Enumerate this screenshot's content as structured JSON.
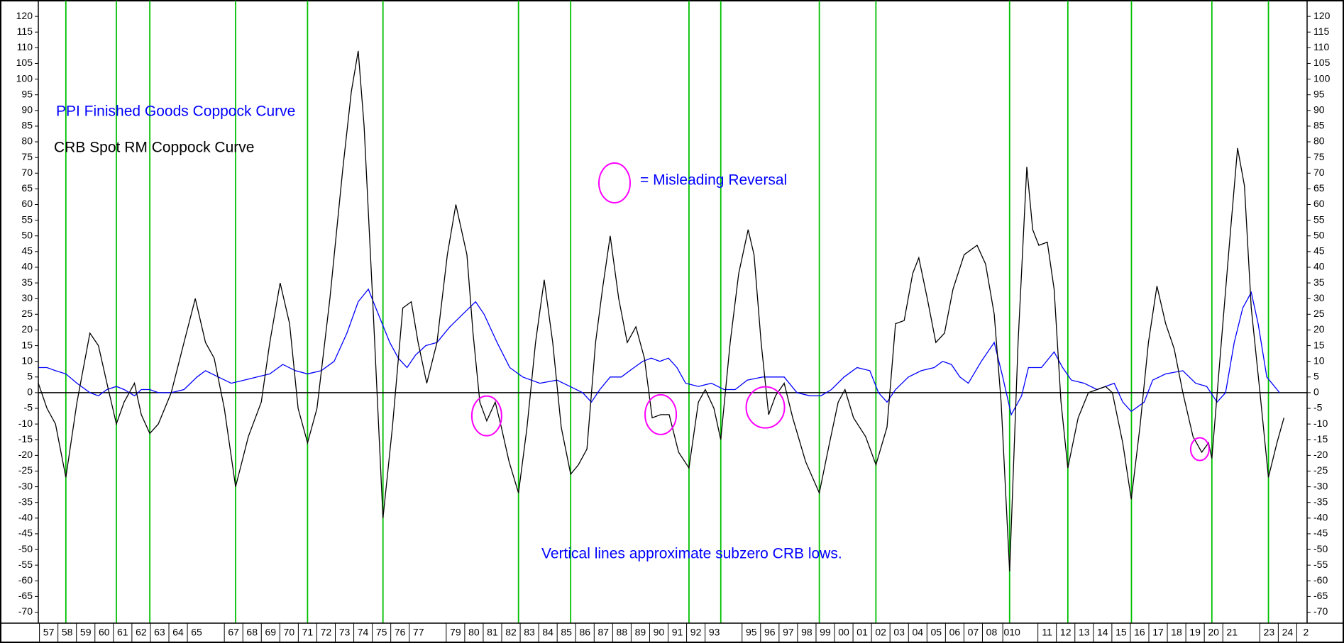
{
  "chart_data": {
    "type": "line",
    "annotations": [
      "PPI Finished Goods Coppock Curve",
      "CRB Spot RM Coppock Curve",
      "= Misleading Reversal",
      "Vertical lines approximate subzero CRB lows."
    ],
    "series": [
      {
        "name": "PPI Finished Goods Coppock Curve",
        "color": "#0000ff",
        "x": [
          1956.94,
          1957.41,
          1957.87,
          1958.43,
          1959.03,
          1959.73,
          1960.19,
          1960.65,
          1961.16,
          1961.58,
          1962.14,
          1962.51,
          1962.97,
          1963.43,
          1964.13,
          1964.82,
          1965.52,
          1965.98,
          1966.68,
          1967.37,
          1968.07,
          1968.77,
          1969.46,
          1970.16,
          1970.85,
          1971.5,
          1972.24,
          1972.94,
          1973.63,
          1974.24,
          1974.79,
          1975.26,
          1975.95,
          1976.41,
          1976.88,
          1977.34,
          1977.9,
          1978.5,
          1979.2,
          1979.89,
          1980.59,
          1981.05,
          1981.75,
          1982.44,
          1983.14,
          1984.06,
          1984.99,
          1985.69,
          1986.38,
          1986.85,
          1987.31,
          1987.87,
          1988.47,
          1989.16,
          1989.63,
          1990.09,
          1990.55,
          1991.02,
          1991.48,
          1991.95,
          1992.64,
          1993.34,
          1994.03,
          1994.63,
          1995.28,
          1996.12,
          1996.81,
          1997.28,
          1997.97,
          1998.67,
          1999.27,
          1999.83,
          2000.52,
          2001.22,
          2001.91,
          2002.38,
          2002.84,
          2003.3,
          2004.0,
          2004.69,
          2005.39,
          2005.85,
          2006.32,
          2006.78,
          2007.24,
          2007.94,
          2008.64,
          2009.1,
          2009.56,
          2010.12,
          2010.49,
          2011.19,
          2011.88,
          2012.34,
          2012.81,
          2013.5,
          2014.2,
          2014.66,
          2015.13,
          2015.59,
          2016.05,
          2016.75,
          2017.21,
          2017.91,
          2018.84,
          2019.53,
          2020.13,
          2020.69,
          2021.15,
          2021.62,
          2022.08,
          2022.54,
          2022.91,
          2023.38,
          2024.07
        ],
        "values": [
          8,
          8,
          7,
          6,
          3,
          0,
          -1,
          1,
          2,
          1,
          -1,
          1,
          1,
          0,
          0,
          1,
          5,
          7,
          5,
          3,
          4,
          5,
          6,
          9,
          7,
          6,
          7,
          10,
          19,
          29,
          33,
          26,
          16,
          11,
          8,
          12,
          15,
          16,
          21,
          25,
          29,
          25,
          16,
          8,
          5,
          3,
          4,
          2,
          0,
          -3,
          1,
          5,
          5,
          8,
          10,
          11,
          10,
          11,
          8,
          3,
          2,
          3,
          1,
          1,
          4,
          5,
          5,
          5,
          0,
          -1,
          -1,
          1,
          5,
          8,
          7,
          0,
          -3,
          1,
          5,
          7,
          8,
          10,
          9,
          5,
          3,
          10,
          16,
          5,
          -7,
          -1,
          8,
          8,
          13,
          8,
          4,
          3,
          1,
          2,
          3,
          -3,
          -6,
          -3,
          4,
          6,
          7,
          3,
          2,
          -3,
          0,
          16,
          27,
          32,
          22,
          5,
          0
        ]
      },
      {
        "name": "CRB Spot RM Coppock Curve",
        "color": "#000000",
        "x": [
          1956.94,
          1957.41,
          1957.87,
          1958.43,
          1959.03,
          1959.73,
          1960.19,
          1960.65,
          1961.16,
          1961.58,
          1962.14,
          1962.51,
          1962.97,
          1963.43,
          1964.13,
          1964.82,
          1965.43,
          1965.98,
          1966.45,
          1967.0,
          1967.61,
          1968.3,
          1969.0,
          1969.46,
          1970.02,
          1970.53,
          1970.99,
          1971.5,
          1972.01,
          1972.71,
          1973.4,
          1973.87,
          1974.24,
          1974.56,
          1975.02,
          1975.58,
          1976.09,
          1976.65,
          1977.11,
          1977.48,
          1977.95,
          1978.5,
          1979.06,
          1979.52,
          1980.12,
          1980.45,
          1980.82,
          1981.19,
          1981.65,
          1981.98,
          1982.4,
          1982.91,
          1983.37,
          1983.83,
          1984.3,
          1984.76,
          1985.22,
          1985.73,
          1986.15,
          1986.61,
          1987.08,
          1987.45,
          1987.87,
          1988.33,
          1988.79,
          1989.26,
          1989.72,
          1990.14,
          1990.6,
          1991.06,
          1991.57,
          1992.13,
          1992.64,
          1993.01,
          1993.48,
          1993.85,
          1994.36,
          1994.82,
          1995.33,
          1995.65,
          1996.03,
          1996.44,
          1996.81,
          1997.28,
          1997.74,
          1998.44,
          1999.18,
          1999.73,
          2000.2,
          2000.57,
          2001.03,
          2001.68,
          2002.24,
          2002.84,
          2003.3,
          2003.77,
          2004.23,
          2004.56,
          2005.02,
          2005.48,
          2005.95,
          2006.41,
          2007.01,
          2007.71,
          2008.17,
          2008.64,
          2009.01,
          2009.47,
          2009.93,
          2010.4,
          2010.72,
          2011.05,
          2011.51,
          2011.88,
          2012.25,
          2012.62,
          2013.18,
          2013.73,
          2014.2,
          2014.66,
          2015.03,
          2015.59,
          2016.05,
          2016.52,
          2016.98,
          2017.44,
          2017.91,
          2018.37,
          2018.84,
          2019.39,
          2019.86,
          2020.23,
          2020.41,
          2020.92,
          2021.38,
          2021.8,
          2022.17,
          2022.54,
          2023.01,
          2023.47,
          2023.93,
          2024.31
        ],
        "values": [
          3,
          -5,
          -10,
          -27,
          -3,
          19,
          15,
          3,
          -10,
          -3,
          3,
          -7,
          -13,
          -10,
          0,
          16,
          30,
          16,
          11,
          -5,
          -30,
          -14,
          -3,
          16,
          35,
          22,
          -5,
          -16,
          -5,
          30,
          71,
          96,
          109,
          85,
          30,
          -40,
          -11,
          27,
          29,
          16,
          3,
          16,
          44,
          60,
          44,
          19,
          -3,
          -9,
          -3,
          -11,
          -22,
          -32,
          -11,
          16,
          36,
          16,
          -11,
          -26,
          -23,
          -18,
          16,
          33,
          50,
          30,
          16,
          21,
          11,
          -8,
          -7,
          -7,
          -19,
          -24,
          -3,
          1,
          -5,
          -15,
          16,
          38,
          52,
          44,
          16,
          -7,
          -1,
          3,
          -8,
          -22,
          -32,
          -16,
          -3,
          1,
          -8,
          -14,
          -23,
          -11,
          22,
          23,
          38,
          43,
          30,
          16,
          19,
          33,
          44,
          47,
          41,
          25,
          -3,
          -57,
          16,
          72,
          52,
          47,
          48,
          33,
          -3,
          -24,
          -8,
          0,
          1,
          2,
          0,
          -16,
          -34,
          -11,
          16,
          34,
          22,
          14,
          0,
          -14,
          -19,
          -16,
          -21,
          16,
          49,
          78,
          66,
          27,
          0,
          -27,
          -16,
          -8
        ]
      }
    ],
    "vlines": [
      1958.43,
      1961.16,
      1962.97,
      1967.61,
      1971.5,
      1975.58,
      1982.91,
      1985.73,
      1992.13,
      1993.85,
      1999.18,
      2002.24,
      2009.47,
      2012.62,
      2016.06,
      2020.41,
      2023.47
    ],
    "vline_color": "#00c000",
    "highlights": [
      {
        "x": 1981.19,
        "y": -7.4
      },
      {
        "x": 1990.6,
        "y": -7
      },
      {
        "x": 1996.26,
        "y": -4.7
      },
      {
        "x": 2019.76,
        "y": -18
      }
    ],
    "highlight_color": "#ff00ff",
    "xlim": [
      1956.94,
      2025.56
    ],
    "ylim": [
      -73.5,
      125
    ],
    "xticks": [
      {
        "value": 1957.5,
        "label": "57"
      },
      {
        "value": 1958.5,
        "label": "58"
      },
      {
        "value": 1959.5,
        "label": "59"
      },
      {
        "value": 1960.5,
        "label": "60"
      },
      {
        "value": 1961.5,
        "label": "61"
      },
      {
        "value": 1962.5,
        "label": "62"
      },
      {
        "value": 1963.5,
        "label": "63"
      },
      {
        "value": 1964.5,
        "label": "64"
      },
      {
        "value": 1965.5,
        "label": "65"
      },
      {
        "value": 1967.5,
        "label": "67"
      },
      {
        "value": 1968.5,
        "label": "68"
      },
      {
        "value": 1969.5,
        "label": "69"
      },
      {
        "value": 1970.5,
        "label": "70"
      },
      {
        "value": 1971.5,
        "label": "71"
      },
      {
        "value": 1972.5,
        "label": "72"
      },
      {
        "value": 1973.5,
        "label": "73"
      },
      {
        "value": 1974.5,
        "label": "74"
      },
      {
        "value": 1975.5,
        "label": "75"
      },
      {
        "value": 1976.5,
        "label": "76"
      },
      {
        "value": 1977.5,
        "label": "77"
      },
      {
        "value": 1979.5,
        "label": "79"
      },
      {
        "value": 1980.5,
        "label": "80"
      },
      {
        "value": 1981.5,
        "label": "81"
      },
      {
        "value": 1982.5,
        "label": "82"
      },
      {
        "value": 1983.5,
        "label": "83"
      },
      {
        "value": 1984.5,
        "label": "84"
      },
      {
        "value": 1985.5,
        "label": "85"
      },
      {
        "value": 1986.5,
        "label": "86"
      },
      {
        "value": 1987.5,
        "label": "87"
      },
      {
        "value": 1988.5,
        "label": "88"
      },
      {
        "value": 1989.5,
        "label": "89"
      },
      {
        "value": 1990.5,
        "label": "90"
      },
      {
        "value": 1991.5,
        "label": "91"
      },
      {
        "value": 1992.5,
        "label": "92"
      },
      {
        "value": 1993.5,
        "label": "93"
      },
      {
        "value": 1995.5,
        "label": "95"
      },
      {
        "value": 1996.5,
        "label": "96"
      },
      {
        "value": 1997.5,
        "label": "97"
      },
      {
        "value": 1998.5,
        "label": "98"
      },
      {
        "value": 1999.5,
        "label": "99"
      },
      {
        "value": 2000.5,
        "label": "00"
      },
      {
        "value": 2001.5,
        "label": "01"
      },
      {
        "value": 2002.5,
        "label": "02"
      },
      {
        "value": 2003.5,
        "label": "03"
      },
      {
        "value": 2004.5,
        "label": "04"
      },
      {
        "value": 2005.5,
        "label": "05"
      },
      {
        "value": 2006.5,
        "label": "06"
      },
      {
        "value": 2007.5,
        "label": "07"
      },
      {
        "value": 2008.5,
        "label": "08"
      },
      {
        "value": 2009.6,
        "label": "010"
      },
      {
        "value": 2011.5,
        "label": "11"
      },
      {
        "value": 2012.5,
        "label": "12"
      },
      {
        "value": 2013.5,
        "label": "13"
      },
      {
        "value": 2014.5,
        "label": "14"
      },
      {
        "value": 2015.5,
        "label": "15"
      },
      {
        "value": 2016.5,
        "label": "16"
      },
      {
        "value": 2017.5,
        "label": "17"
      },
      {
        "value": 2018.5,
        "label": "18"
      },
      {
        "value": 2019.5,
        "label": "19"
      },
      {
        "value": 2020.5,
        "label": "20"
      },
      {
        "value": 2021.5,
        "label": "21"
      },
      {
        "value": 2023.5,
        "label": "23"
      },
      {
        "value": 2024.5,
        "label": "24"
      },
      {
        "value": 2025.5,
        "label": "2"
      }
    ],
    "yticks": [
      -70,
      -65,
      -60,
      -55,
      -50,
      -45,
      -40,
      -35,
      -30,
      -25,
      -20,
      -15,
      -10,
      -5,
      0,
      5,
      10,
      15,
      20,
      25,
      30,
      35,
      40,
      45,
      50,
      55,
      60,
      65,
      70,
      75,
      80,
      85,
      90,
      95,
      100,
      105,
      110,
      115,
      120
    ]
  }
}
